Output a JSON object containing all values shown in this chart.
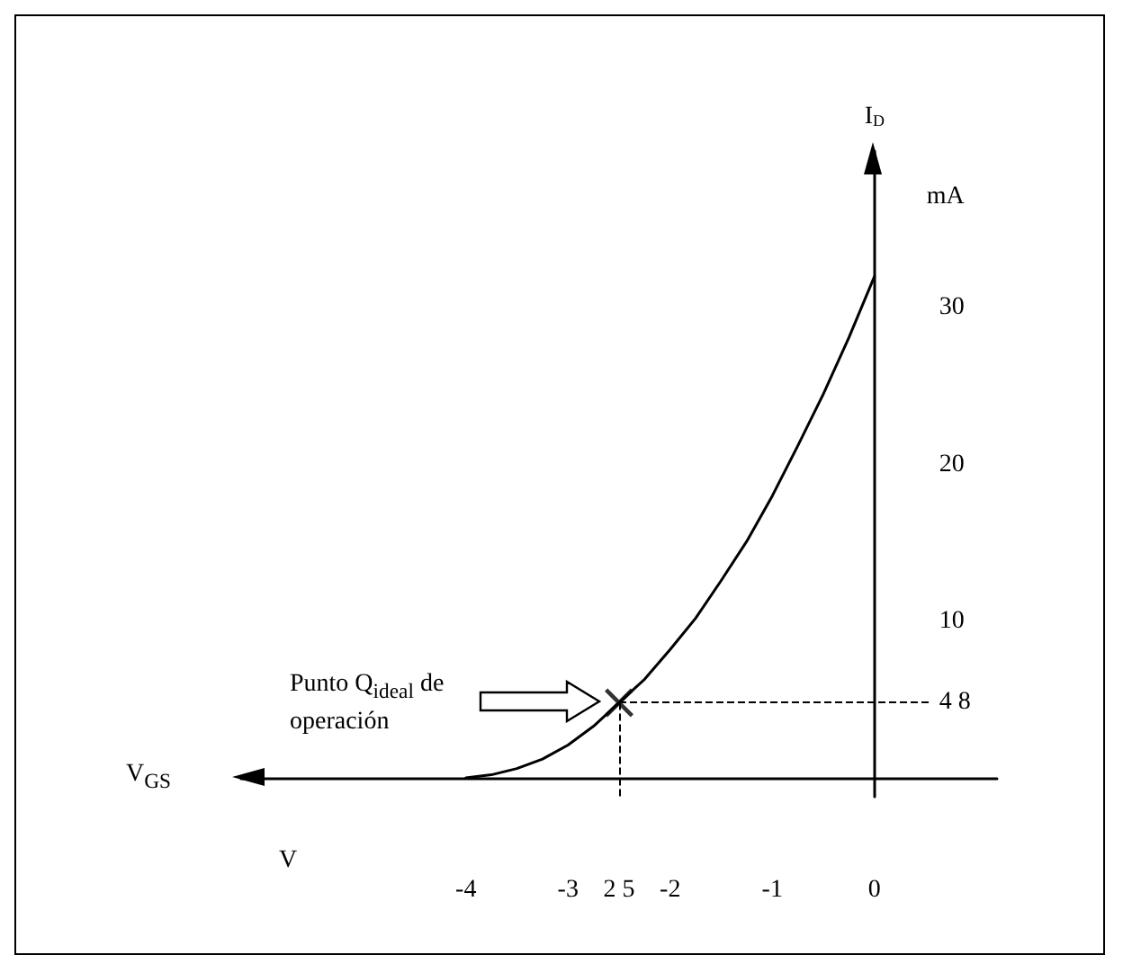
{
  "chart_data": {
    "type": "line",
    "xlabel": "V$_{GS}$",
    "ylabel": "I$_{D}$",
    "xlim": [
      -6.2,
      1.2
    ],
    "ylim": [
      -1.2,
      40
    ],
    "xticks": [
      -4,
      -3,
      {
        "value": -2.5,
        "label": "2 5"
      },
      -2,
      -1,
      0
    ],
    "yticks": [
      {
        "value": 4.8,
        "label": "4 8"
      },
      10,
      20,
      30
    ],
    "series": [
      {
        "type": "line",
        "color": "#000000",
        "marker": "none",
        "x": [
          -4,
          -3.75,
          -3.5,
          -3.25,
          -3,
          -2.75,
          -2.5,
          -2.25,
          -2,
          -1.75,
          -1.5,
          -1.25,
          -1,
          -0.75,
          -0.5,
          -0.25,
          0
        ],
        "values": [
          0,
          0.2,
          0.6,
          1.2,
          2.1,
          3.3,
          4.8,
          6.3,
          8.2,
          10.2,
          12.6,
          15.1,
          18,
          21.2,
          24.5,
          28.1,
          32
        ]
      },
      {
        "type": "scatter",
        "color": "#000000",
        "marker": "cross",
        "x": [
          -2.5
        ],
        "values": [
          4.8
        ]
      }
    ],
    "ref_lines": [
      {
        "axis": "y",
        "value": 4.8,
        "line_style": "dashed"
      },
      {
        "axis": "x",
        "value": -2.5,
        "line_style": "dashed"
      }
    ],
    "annotations": [
      "mA",
      "V",
      "Punto Q$_{ideal}$ de operación"
    ]
  }
}
